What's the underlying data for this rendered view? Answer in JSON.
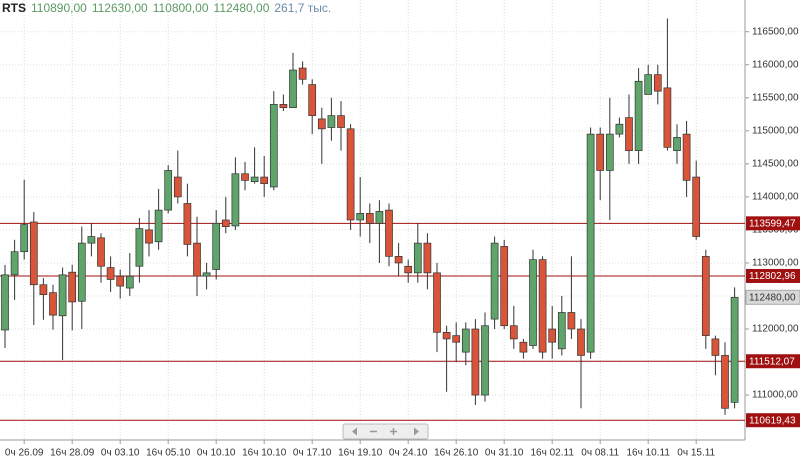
{
  "chart_data": {
    "type": "candlestick",
    "title": "RTS",
    "header_values": [
      "110890,00",
      "112630,00",
      "110800,00",
      "112480,00",
      "261,7 тыс."
    ],
    "categories": [
      null,
      null,
      "0ч 26.09",
      null,
      null,
      null,
      null,
      "16ч 28.09",
      null,
      null,
      null,
      null,
      "0ч 03.10",
      null,
      null,
      null,
      null,
      "16ч 05.10",
      null,
      null,
      null,
      null,
      "0ч 10.10",
      null,
      null,
      null,
      null,
      "16ч 10.10",
      null,
      null,
      null,
      null,
      "0ч 17.10",
      null,
      null,
      null,
      null,
      "16ч 19.10",
      null,
      null,
      null,
      null,
      "0ч 24.10",
      null,
      null,
      null,
      null,
      "16ч 26.10",
      null,
      null,
      null,
      null,
      "0ч 31.10",
      null,
      null,
      null,
      null,
      "16ч 02.11",
      null,
      null,
      null,
      null,
      "0ч 08.11",
      null,
      null,
      null,
      null,
      "16ч 10.11",
      null,
      null,
      null,
      null,
      "0ч 15.11",
      null,
      null,
      null,
      null
    ],
    "open": [
      111985,
      112820,
      113170,
      113620,
      112670,
      112550,
      112200,
      112860,
      112420,
      113300,
      113380,
      112930,
      112800,
      112620,
      112950,
      113500,
      113320,
      113800,
      114300,
      113900,
      113300,
      112800,
      112900,
      113650,
      113560,
      114350,
      114230,
      114300,
      114150,
      115400,
      115350,
      115950,
      115700,
      115180,
      115050,
      115230,
      115030,
      113650,
      113750,
      113600,
      113800,
      113100,
      112950,
      112850,
      113300,
      112850,
      111950,
      111900,
      111650,
      112000,
      111000,
      112150,
      113250,
      112050,
      111800,
      111750,
      113050,
      112000,
      111700,
      112250,
      112000,
      111650,
      114950,
      114400,
      114950,
      115200,
      114700,
      115550,
      115850,
      115650,
      114700,
      114950,
      114300,
      113100,
      111850,
      111600,
      110890
    ],
    "high": [
      112970,
      113350,
      114260,
      113770,
      112770,
      112670,
      112930,
      112970,
      113550,
      113600,
      113450,
      113100,
      112900,
      113150,
      113680,
      113800,
      114120,
      114480,
      114700,
      114200,
      113700,
      113000,
      113800,
      114000,
      114600,
      114530,
      114750,
      114620,
      115600,
      115550,
      116180,
      116050,
      115780,
      115350,
      115500,
      115450,
      115100,
      114300,
      113900,
      113950,
      113900,
      113300,
      113050,
      113600,
      113450,
      113000,
      112050,
      112100,
      112100,
      112150,
      112250,
      113400,
      113350,
      112350,
      111850,
      113200,
      113100,
      112350,
      112500,
      113100,
      112150,
      115050,
      115050,
      115500,
      115200,
      115550,
      115950,
      116000,
      116000,
      116700,
      115100,
      115150,
      114550,
      113200,
      111900,
      111800,
      112630
    ],
    "low": [
      111713,
      112440,
      113050,
      112060,
      112140,
      111990,
      111530,
      111980,
      112000,
      113100,
      112700,
      112560,
      112460,
      112500,
      112700,
      113100,
      113200,
      113750,
      113900,
      113100,
      112500,
      112600,
      112750,
      113450,
      113500,
      114100,
      114200,
      114000,
      114100,
      115300,
      115350,
      115700,
      114950,
      114500,
      114850,
      114700,
      113500,
      113400,
      113300,
      113000,
      112950,
      112800,
      112700,
      112700,
      112600,
      111650,
      111050,
      111500,
      111450,
      110850,
      110900,
      112000,
      112000,
      111700,
      111550,
      111700,
      111550,
      111550,
      111600,
      111850,
      110800,
      111550,
      113950,
      113650,
      114900,
      114500,
      114500,
      115550,
      115400,
      114700,
      114500,
      114000,
      113350,
      111700,
      111300,
      110700,
      110800
    ],
    "close": [
      112820,
      113170,
      113580,
      112670,
      112520,
      112210,
      112820,
      112410,
      113300,
      113400,
      112950,
      112750,
      112650,
      112800,
      113520,
      113300,
      113800,
      114400,
      114000,
      113280,
      112800,
      112850,
      113600,
      113550,
      114350,
      114250,
      114300,
      114200,
      115400,
      115350,
      115920,
      115780,
      115230,
      115030,
      115230,
      115050,
      113650,
      113750,
      113600,
      113780,
      113100,
      113000,
      112850,
      113300,
      112850,
      111950,
      111850,
      111800,
      112000,
      111000,
      112050,
      113300,
      112050,
      111850,
      111650,
      113050,
      111650,
      111800,
      112250,
      112000,
      111600,
      114950,
      114400,
      114950,
      115100,
      114700,
      115750,
      115850,
      115600,
      114750,
      114900,
      114250,
      113400,
      111900,
      111600,
      110800,
      112480
    ],
    "up_color": "#5fa46a",
    "down_color": "#d9553a",
    "level_color": "#a01010",
    "ylim": [
      110320,
      116980
    ],
    "yticks": [
      {
        "value": 111000,
        "label": "111000,00"
      },
      {
        "value": 111500,
        "label": "111500,00"
      },
      {
        "value": 112000,
        "label": "112000,00"
      },
      {
        "value": 112500,
        "label": "112500,00"
      },
      {
        "value": 113000,
        "label": "113000,00"
      },
      {
        "value": 113500,
        "label": "113500,00"
      },
      {
        "value": 114000,
        "label": "114000,00"
      },
      {
        "value": 114500,
        "label": "114500,00"
      },
      {
        "value": 115000,
        "label": "115000,00"
      },
      {
        "value": 115500,
        "label": "115500,00"
      },
      {
        "value": 116000,
        "label": "116000,00"
      },
      {
        "value": 116500,
        "label": "116500,00"
      }
    ],
    "levels": [
      {
        "value": 113599.47,
        "label": "113599,47"
      },
      {
        "value": 112802.96,
        "label": "112802,96"
      },
      {
        "value": 111512.07,
        "label": "111512,07"
      },
      {
        "value": 110619.43,
        "label": "110619,43"
      }
    ],
    "last_price": {
      "value": 112480,
      "label": "112480,00"
    },
    "grid": true
  }
}
